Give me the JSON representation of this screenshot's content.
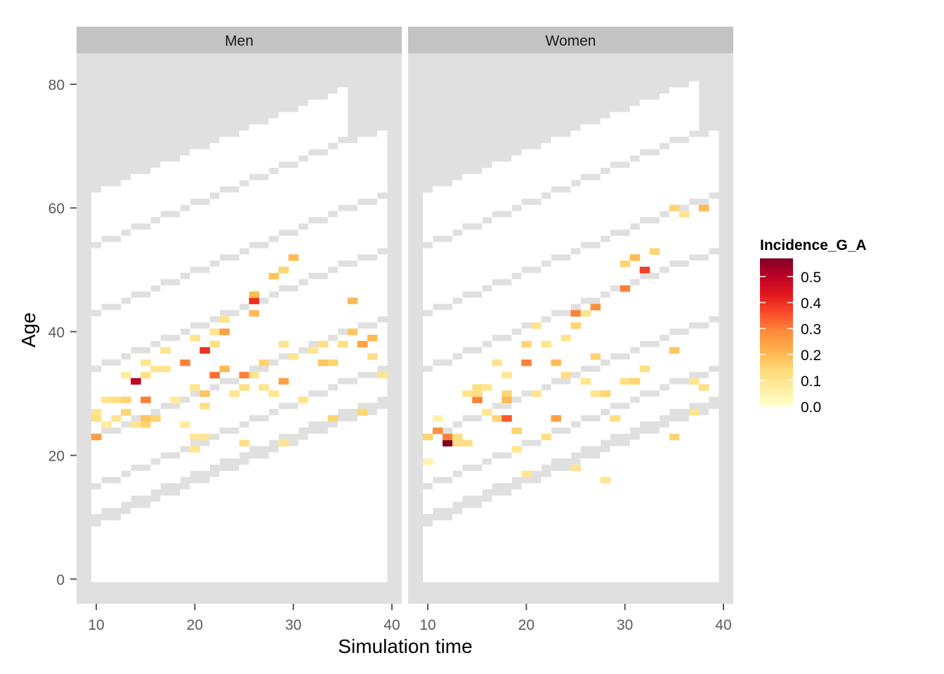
{
  "chart_data": {
    "type": "heatmap",
    "xlabel": "Simulation time",
    "ylabel": "Age",
    "xlim": [
      8,
      41
    ],
    "ylim": [
      -4,
      85
    ],
    "x_ticks": [
      10,
      20,
      30,
      40
    ],
    "y_ticks": [
      0,
      20,
      40,
      60,
      80
    ],
    "legend": {
      "title": "Incidence_G_A",
      "position": "right",
      "ticks": [
        0.5,
        0.4,
        0.3,
        0.2,
        0.1,
        0.0
      ],
      "range": [
        0,
        0.57
      ]
    },
    "colors": {
      "panel_bg": "#e0e0e0",
      "strip_bg": "#c3c3c3",
      "tick_text": "#5a5a5a",
      "zero_cell": "#ffffff",
      "scale": [
        "#ffffcc",
        "#ffeda0",
        "#fed976",
        "#feb24c",
        "#fd8d3c",
        "#fc4e2a",
        "#e31a1c",
        "#bd0026",
        "#800026"
      ]
    },
    "panels": [
      {
        "label": "Men",
        "cells": [
          [
            10,
            23,
            0.25
          ],
          [
            10,
            26,
            0.12
          ],
          [
            10,
            27,
            0.1
          ],
          [
            11,
            29,
            0.1
          ],
          [
            11,
            25,
            0.08
          ],
          [
            12,
            29,
            0.12
          ],
          [
            12,
            26,
            0.1
          ],
          [
            13,
            29,
            0.15
          ],
          [
            13,
            27,
            0.15
          ],
          [
            13,
            33,
            0.08
          ],
          [
            14,
            32,
            0.5
          ],
          [
            14,
            25,
            0.1
          ],
          [
            15,
            29,
            0.3
          ],
          [
            15,
            35,
            0.1
          ],
          [
            15,
            33,
            0.12
          ],
          [
            15,
            26,
            0.18
          ],
          [
            15,
            25,
            0.15
          ],
          [
            16,
            34,
            0.1
          ],
          [
            16,
            26,
            0.15
          ],
          [
            17,
            37,
            0.1
          ],
          [
            17,
            34,
            0.1
          ],
          [
            18,
            29,
            0.08
          ],
          [
            19,
            35,
            0.3
          ],
          [
            19,
            25,
            0.08
          ],
          [
            20,
            31,
            0.1
          ],
          [
            20,
            39,
            0.1
          ],
          [
            20,
            23,
            0.1
          ],
          [
            20,
            21,
            0.1
          ],
          [
            21,
            37,
            0.4
          ],
          [
            21,
            30,
            0.18
          ],
          [
            21,
            28,
            0.12
          ],
          [
            21,
            23,
            0.1
          ],
          [
            22,
            33,
            0.32
          ],
          [
            22,
            38,
            0.12
          ],
          [
            22,
            40,
            0.1
          ],
          [
            23,
            40,
            0.25
          ],
          [
            23,
            42,
            0.1
          ],
          [
            23,
            34,
            0.2
          ],
          [
            24,
            30,
            0.1
          ],
          [
            25,
            33,
            0.3
          ],
          [
            25,
            31,
            0.12
          ],
          [
            25,
            22,
            0.12
          ],
          [
            26,
            45,
            0.4
          ],
          [
            26,
            46,
            0.2
          ],
          [
            26,
            43,
            0.2
          ],
          [
            26,
            33,
            0.1
          ],
          [
            27,
            35,
            0.15
          ],
          [
            27,
            31,
            0.1
          ],
          [
            28,
            49,
            0.18
          ],
          [
            28,
            30,
            0.1
          ],
          [
            29,
            50,
            0.15
          ],
          [
            29,
            32,
            0.25
          ],
          [
            29,
            38,
            0.1
          ],
          [
            29,
            22,
            0.1
          ],
          [
            30,
            52,
            0.2
          ],
          [
            30,
            36,
            0.1
          ],
          [
            31,
            29,
            0.1
          ],
          [
            32,
            37,
            0.1
          ],
          [
            33,
            35,
            0.18
          ],
          [
            33,
            38,
            0.12
          ],
          [
            34,
            35,
            0.15
          ],
          [
            34,
            26,
            0.15
          ],
          [
            35,
            38,
            0.12
          ],
          [
            36,
            40,
            0.18
          ],
          [
            36,
            45,
            0.2
          ],
          [
            37,
            38,
            0.25
          ],
          [
            37,
            27,
            0.15
          ],
          [
            38,
            39,
            0.2
          ],
          [
            38,
            36,
            0.12
          ],
          [
            39,
            33,
            0.1
          ]
        ]
      },
      {
        "label": "Women",
        "cells": [
          [
            10,
            23,
            0.15
          ],
          [
            10,
            19,
            0.05
          ],
          [
            11,
            24,
            0.28
          ],
          [
            11,
            26,
            0.05
          ],
          [
            12,
            22,
            0.57
          ],
          [
            12,
            23,
            0.3
          ],
          [
            13,
            23,
            0.12
          ],
          [
            13,
            22,
            0.12
          ],
          [
            14,
            22,
            0.12
          ],
          [
            14,
            30,
            0.1
          ],
          [
            15,
            29,
            0.3
          ],
          [
            15,
            31,
            0.12
          ],
          [
            15,
            30,
            0.12
          ],
          [
            16,
            31,
            0.1
          ],
          [
            16,
            27,
            0.1
          ],
          [
            17,
            35,
            0.1
          ],
          [
            17,
            26,
            0.15
          ],
          [
            18,
            26,
            0.35
          ],
          [
            18,
            29,
            0.2
          ],
          [
            18,
            30,
            0.15
          ],
          [
            18,
            33,
            0.1
          ],
          [
            19,
            24,
            0.15
          ],
          [
            19,
            21,
            0.1
          ],
          [
            20,
            35,
            0.3
          ],
          [
            20,
            38,
            0.15
          ],
          [
            20,
            17,
            0.1
          ],
          [
            21,
            41,
            0.1
          ],
          [
            21,
            30,
            0.1
          ],
          [
            22,
            38,
            0.1
          ],
          [
            22,
            23,
            0.12
          ],
          [
            23,
            26,
            0.25
          ],
          [
            23,
            35,
            0.2
          ],
          [
            24,
            39,
            0.1
          ],
          [
            24,
            33,
            0.12
          ],
          [
            25,
            43,
            0.3
          ],
          [
            25,
            41,
            0.15
          ],
          [
            25,
            18,
            0.1
          ],
          [
            26,
            43,
            0.1
          ],
          [
            26,
            32,
            0.1
          ],
          [
            27,
            44,
            0.28
          ],
          [
            27,
            36,
            0.15
          ],
          [
            27,
            30,
            0.1
          ],
          [
            28,
            30,
            0.15
          ],
          [
            28,
            16,
            0.1
          ],
          [
            29,
            26,
            0.12
          ],
          [
            30,
            47,
            0.3
          ],
          [
            30,
            51,
            0.15
          ],
          [
            30,
            32,
            0.12
          ],
          [
            31,
            52,
            0.2
          ],
          [
            31,
            32,
            0.15
          ],
          [
            32,
            50,
            0.38
          ],
          [
            32,
            34,
            0.12
          ],
          [
            33,
            53,
            0.15
          ],
          [
            35,
            37,
            0.18
          ],
          [
            35,
            60,
            0.15
          ],
          [
            36,
            59,
            0.1
          ],
          [
            35,
            23,
            0.15
          ],
          [
            37,
            32,
            0.1
          ],
          [
            37,
            27,
            0.1
          ],
          [
            38,
            60,
            0.2
          ],
          [
            38,
            31,
            0.12
          ]
        ]
      }
    ]
  }
}
